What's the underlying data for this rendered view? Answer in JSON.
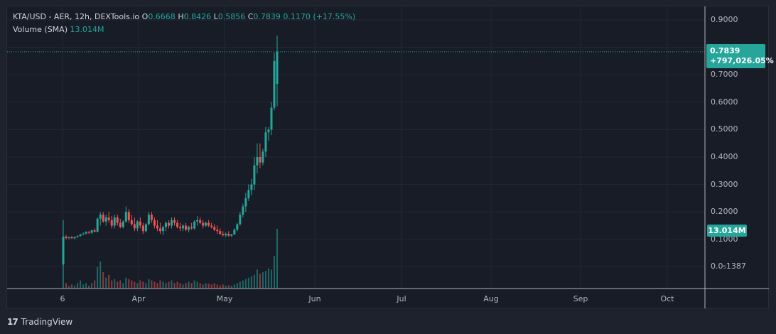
{
  "legend": {
    "symbol": "KTA/USD - AER, 12h, DEXTools.io",
    "open_label": "O",
    "open": "0.6668",
    "high_label": "H",
    "high": "0.8426",
    "low_label": "L",
    "low": "0.5856",
    "close_label": "C",
    "close": "0.7839",
    "change": "0.1170 (+17.55%)",
    "volume_label": "Volume (SMA)",
    "volume": "13.014M"
  },
  "price_badge": {
    "price": "0.7839",
    "change": "+797,026.05%"
  },
  "volume_badge": "13.014M",
  "y_axis": {
    "ticks": [
      "0.9000",
      "0.8000",
      "0.7000",
      "0.6000",
      "0.5000",
      "0.4000",
      "0.3000",
      "0.2000",
      "0.1000",
      "0.0₅1387"
    ]
  },
  "x_axis": {
    "ticks": [
      "6",
      "Apr",
      "May",
      "Jun",
      "Jul",
      "Aug",
      "Sep",
      "Oct"
    ]
  },
  "branding": {
    "logo_mark": "17",
    "name": "TradingView"
  },
  "colors": {
    "up": "#26a69a",
    "down": "#ef5350",
    "background": "#181c27",
    "grid": "#232734"
  },
  "chart_data": {
    "type": "candlestick",
    "title": "KTA/USD - AER, 12h, DEXTools.io",
    "ylim": [
      0,
      0.9
    ],
    "last_price": 0.7839,
    "grid": true,
    "candles_shape": "flat near 0.01 from early March, jump to ~0.15-0.2 by mid-March, range 0.1-0.2 through April, breakout in mid-May to 0.84",
    "candles": [
      [
        0.01,
        0.17,
        0.005,
        0.11
      ],
      [
        0.11,
        0.115,
        0.1,
        0.105
      ],
      [
        0.105,
        0.11,
        0.1,
        0.108
      ],
      [
        0.108,
        0.112,
        0.102,
        0.104
      ],
      [
        0.104,
        0.11,
        0.1,
        0.109
      ],
      [
        0.109,
        0.115,
        0.105,
        0.112
      ],
      [
        0.112,
        0.12,
        0.11,
        0.118
      ],
      [
        0.118,
        0.125,
        0.115,
        0.121
      ],
      [
        0.121,
        0.13,
        0.118,
        0.127
      ],
      [
        0.127,
        0.13,
        0.12,
        0.124
      ],
      [
        0.124,
        0.135,
        0.12,
        0.133
      ],
      [
        0.133,
        0.14,
        0.125,
        0.128
      ],
      [
        0.128,
        0.18,
        0.125,
        0.175
      ],
      [
        0.175,
        0.2,
        0.15,
        0.19
      ],
      [
        0.19,
        0.2,
        0.16,
        0.165
      ],
      [
        0.165,
        0.19,
        0.15,
        0.18
      ],
      [
        0.18,
        0.2,
        0.16,
        0.17
      ],
      [
        0.17,
        0.185,
        0.14,
        0.15
      ],
      [
        0.15,
        0.19,
        0.14,
        0.18
      ],
      [
        0.18,
        0.19,
        0.15,
        0.16
      ],
      [
        0.16,
        0.175,
        0.14,
        0.145
      ],
      [
        0.145,
        0.17,
        0.14,
        0.165
      ],
      [
        0.165,
        0.22,
        0.16,
        0.2
      ],
      [
        0.2,
        0.21,
        0.16,
        0.17
      ],
      [
        0.17,
        0.19,
        0.15,
        0.155
      ],
      [
        0.155,
        0.18,
        0.13,
        0.14
      ],
      [
        0.14,
        0.17,
        0.13,
        0.165
      ],
      [
        0.165,
        0.18,
        0.14,
        0.15
      ],
      [
        0.15,
        0.16,
        0.12,
        0.13
      ],
      [
        0.13,
        0.16,
        0.125,
        0.155
      ],
      [
        0.155,
        0.2,
        0.15,
        0.19
      ],
      [
        0.19,
        0.2,
        0.16,
        0.17
      ],
      [
        0.17,
        0.18,
        0.14,
        0.15
      ],
      [
        0.15,
        0.17,
        0.13,
        0.14
      ],
      [
        0.14,
        0.16,
        0.12,
        0.13
      ],
      [
        0.13,
        0.15,
        0.115,
        0.145
      ],
      [
        0.145,
        0.165,
        0.13,
        0.16
      ],
      [
        0.16,
        0.17,
        0.14,
        0.15
      ],
      [
        0.15,
        0.18,
        0.14,
        0.17
      ],
      [
        0.17,
        0.18,
        0.15,
        0.16
      ],
      [
        0.16,
        0.17,
        0.14,
        0.145
      ],
      [
        0.145,
        0.16,
        0.13,
        0.14
      ],
      [
        0.14,
        0.155,
        0.13,
        0.15
      ],
      [
        0.15,
        0.16,
        0.13,
        0.135
      ],
      [
        0.135,
        0.15,
        0.125,
        0.145
      ],
      [
        0.145,
        0.16,
        0.135,
        0.14
      ],
      [
        0.14,
        0.17,
        0.135,
        0.165
      ],
      [
        0.165,
        0.185,
        0.15,
        0.17
      ],
      [
        0.17,
        0.18,
        0.155,
        0.16
      ],
      [
        0.16,
        0.17,
        0.14,
        0.15
      ],
      [
        0.15,
        0.165,
        0.145,
        0.16
      ],
      [
        0.16,
        0.17,
        0.145,
        0.15
      ],
      [
        0.15,
        0.16,
        0.14,
        0.145
      ],
      [
        0.145,
        0.155,
        0.13,
        0.135
      ],
      [
        0.135,
        0.15,
        0.12,
        0.13
      ],
      [
        0.13,
        0.14,
        0.115,
        0.12
      ],
      [
        0.12,
        0.13,
        0.11,
        0.115
      ],
      [
        0.115,
        0.125,
        0.108,
        0.12
      ],
      [
        0.12,
        0.13,
        0.11,
        0.113
      ],
      [
        0.113,
        0.12,
        0.108,
        0.118
      ],
      [
        0.118,
        0.14,
        0.115,
        0.135
      ],
      [
        0.135,
        0.16,
        0.13,
        0.155
      ],
      [
        0.155,
        0.2,
        0.15,
        0.19
      ],
      [
        0.19,
        0.23,
        0.18,
        0.22
      ],
      [
        0.22,
        0.27,
        0.2,
        0.25
      ],
      [
        0.25,
        0.3,
        0.24,
        0.28
      ],
      [
        0.28,
        0.32,
        0.26,
        0.3
      ],
      [
        0.3,
        0.4,
        0.28,
        0.37
      ],
      [
        0.37,
        0.45,
        0.34,
        0.4
      ],
      [
        0.4,
        0.45,
        0.36,
        0.38
      ],
      [
        0.38,
        0.43,
        0.37,
        0.42
      ],
      [
        0.42,
        0.51,
        0.4,
        0.49
      ],
      [
        0.49,
        0.51,
        0.46,
        0.5
      ],
      [
        0.5,
        0.6,
        0.48,
        0.58
      ],
      [
        0.58,
        0.78,
        0.57,
        0.75
      ],
      [
        0.6668,
        0.8426,
        0.5856,
        0.7839
      ]
    ],
    "volumes": [
      0.9,
      0.2,
      0.1,
      0.15,
      0.1,
      0.2,
      0.3,
      0.15,
      0.2,
      0.1,
      0.2,
      0.3,
      0.8,
      1.0,
      0.6,
      0.4,
      0.5,
      0.3,
      0.35,
      0.25,
      0.3,
      0.2,
      0.4,
      0.35,
      0.3,
      0.25,
      0.2,
      0.3,
      0.25,
      0.2,
      0.35,
      0.3,
      0.25,
      0.2,
      0.3,
      0.25,
      0.2,
      0.25,
      0.3,
      0.2,
      0.25,
      0.2,
      0.15,
      0.2,
      0.25,
      0.2,
      0.3,
      0.25,
      0.2,
      0.15,
      0.2,
      0.18,
      0.15,
      0.2,
      0.15,
      0.12,
      0.15,
      0.1,
      0.12,
      0.1,
      0.15,
      0.2,
      0.25,
      0.3,
      0.35,
      0.4,
      0.45,
      0.5,
      0.7,
      0.55,
      0.6,
      0.65,
      0.75,
      0.7,
      1.2,
      2.2
    ]
  }
}
